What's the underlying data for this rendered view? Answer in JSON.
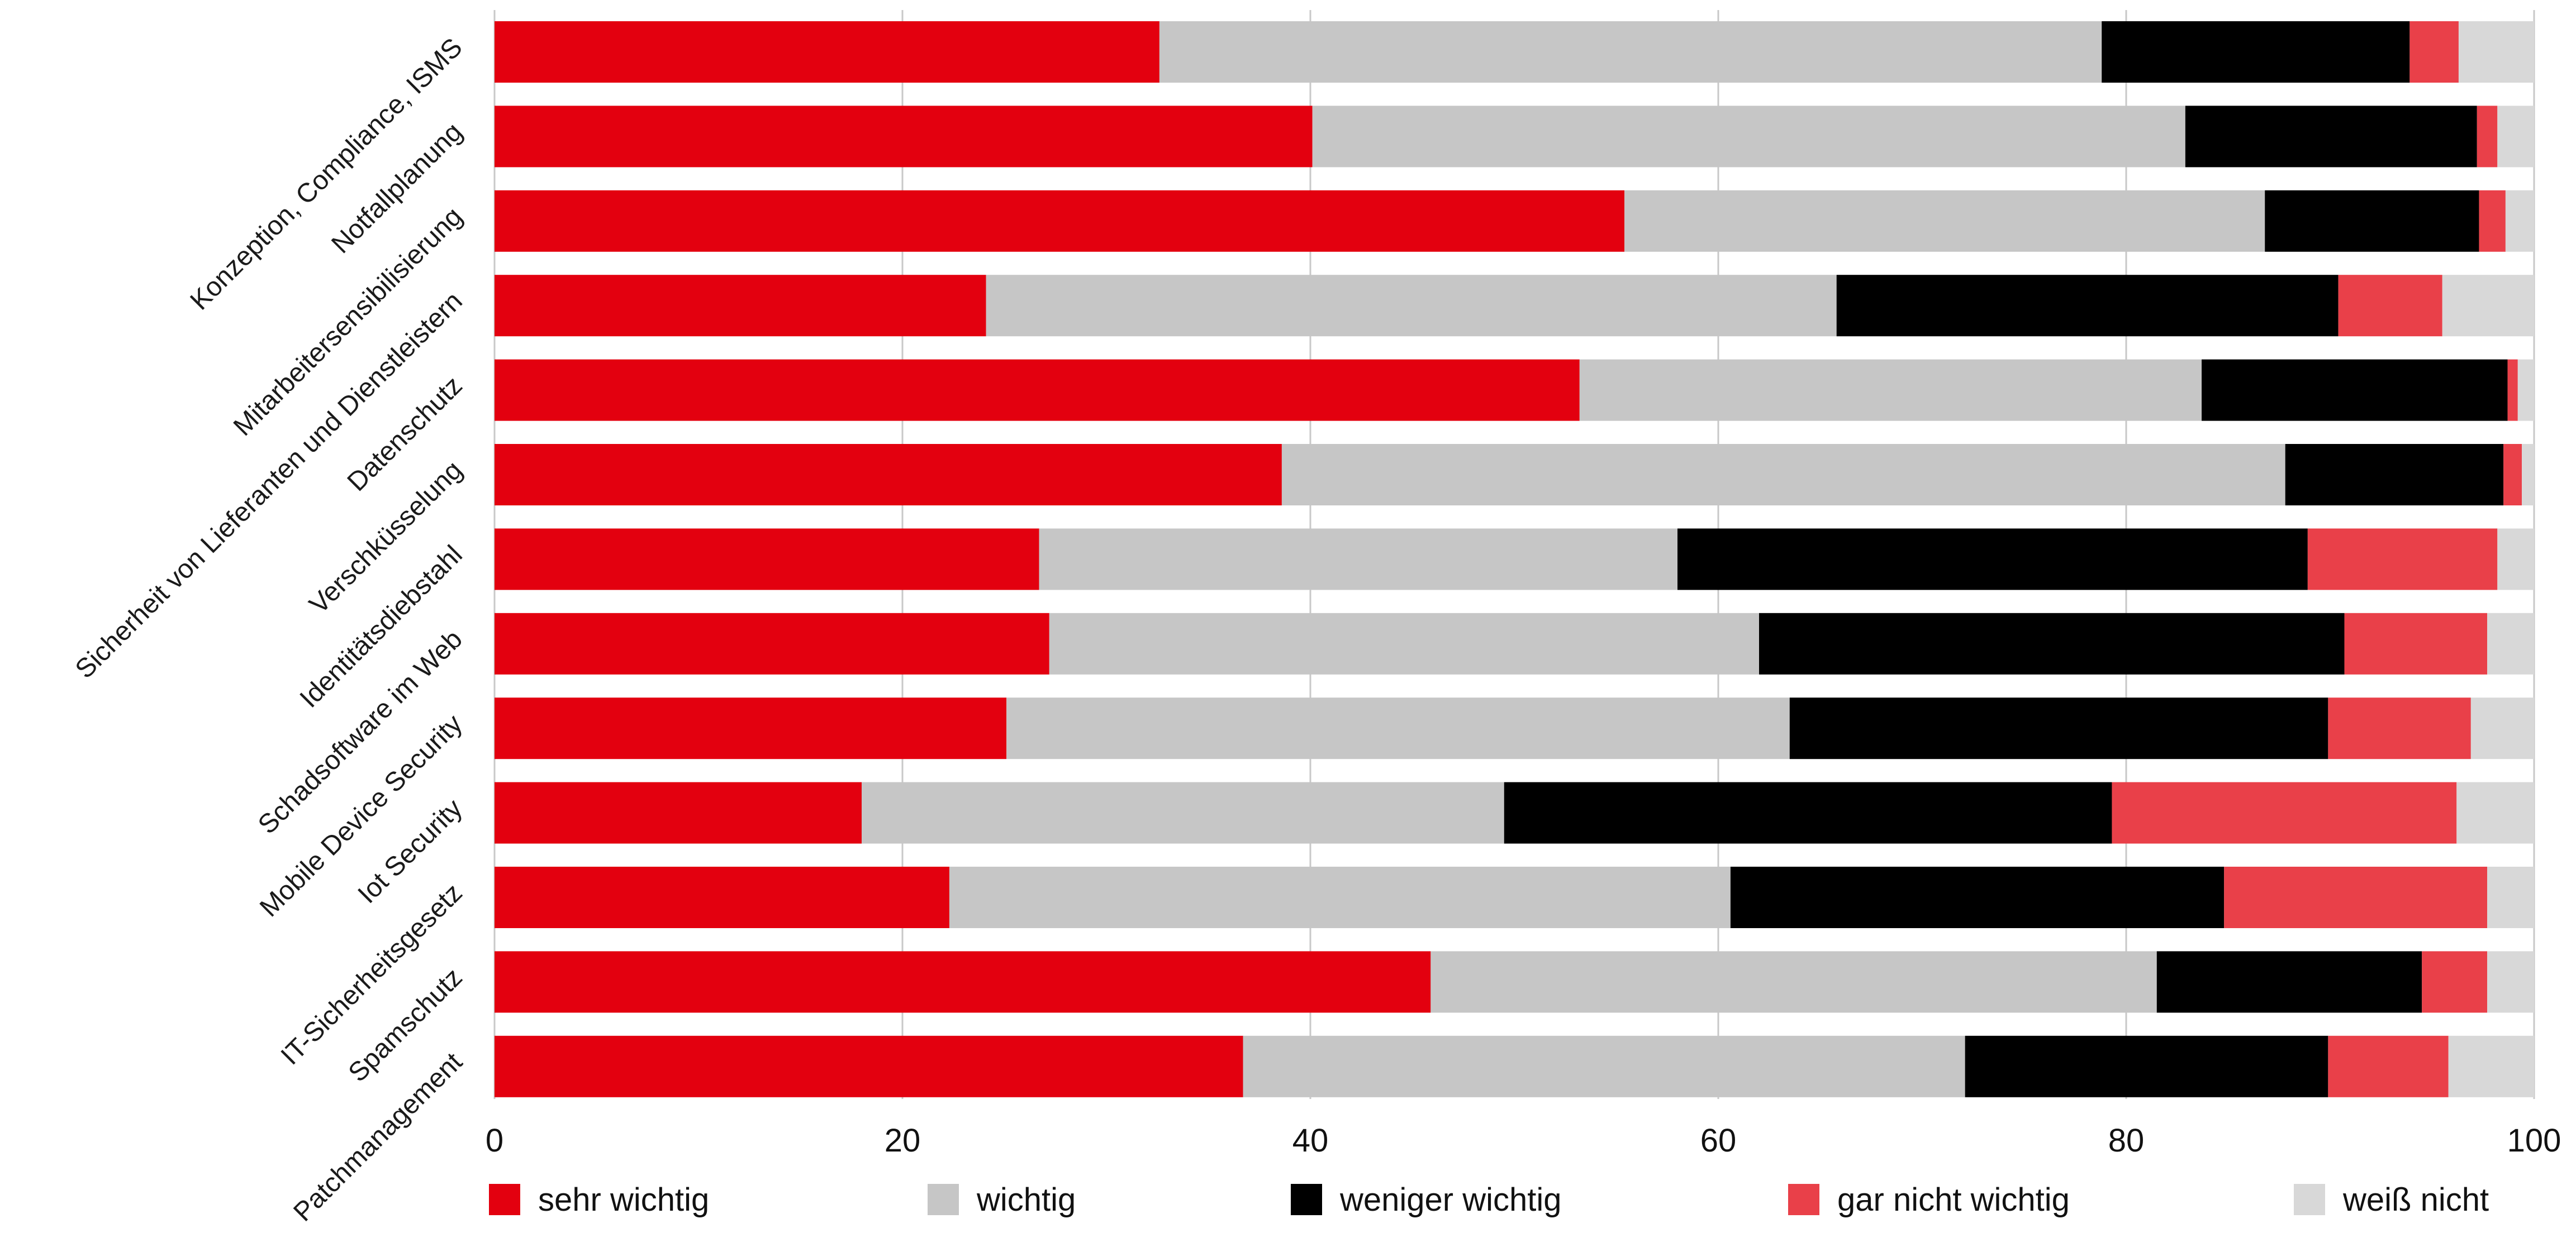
{
  "chart_data": {
    "type": "bar",
    "orientation": "horizontal",
    "stacked": true,
    "categories": [
      "Konzeption, Compliance, ISMS",
      "Notfallplanung",
      "Mitarbeitersensibilisierung",
      "Sicherheit von Lieferanten und Dienstleistern",
      "Datenschutz",
      "Verschküsselung",
      "Identitätsdiebstahl",
      "Schadsoftware im Web",
      "Mobile Device Security",
      "Iot Security",
      "IT-Sicherheitsgesetz",
      "Spamschutz",
      "Patchmanagement"
    ],
    "series": [
      {
        "name": "sehr wichtig",
        "color": "#e3000f",
        "values": [
          32.6,
          40.1,
          55.4,
          24.1,
          53.2,
          38.6,
          26.7,
          27.2,
          25.1,
          18.0,
          22.3,
          45.9,
          36.7
        ]
      },
      {
        "name": "wichtig",
        "color": "#c6c6c6",
        "values": [
          46.2,
          42.8,
          31.4,
          41.7,
          30.5,
          49.2,
          31.3,
          34.8,
          38.4,
          31.5,
          38.3,
          35.6,
          35.4
        ]
      },
      {
        "name": "weniger wichtig",
        "color": "#000000",
        "values": [
          15.1,
          14.3,
          10.5,
          24.6,
          15.0,
          10.7,
          30.9,
          28.7,
          26.4,
          29.8,
          24.2,
          13.0,
          17.8
        ]
      },
      {
        "name": "gar nicht wichtig",
        "color": "#e94049",
        "values": [
          2.4,
          1.0,
          1.3,
          5.1,
          0.5,
          0.9,
          9.3,
          7.0,
          7.0,
          16.9,
          12.9,
          3.2,
          5.9
        ]
      },
      {
        "name": "weiß nicht",
        "color": "#d8d8d8",
        "values": [
          3.7,
          1.8,
          1.4,
          4.5,
          0.8,
          0.6,
          1.8,
          2.3,
          3.1,
          3.8,
          2.3,
          2.3,
          4.2
        ]
      }
    ],
    "xlim": [
      0,
      100
    ],
    "xticks": [
      "0",
      "20",
      "40",
      "60",
      "80",
      "100"
    ],
    "grid": true,
    "legend_position": "bottom"
  }
}
